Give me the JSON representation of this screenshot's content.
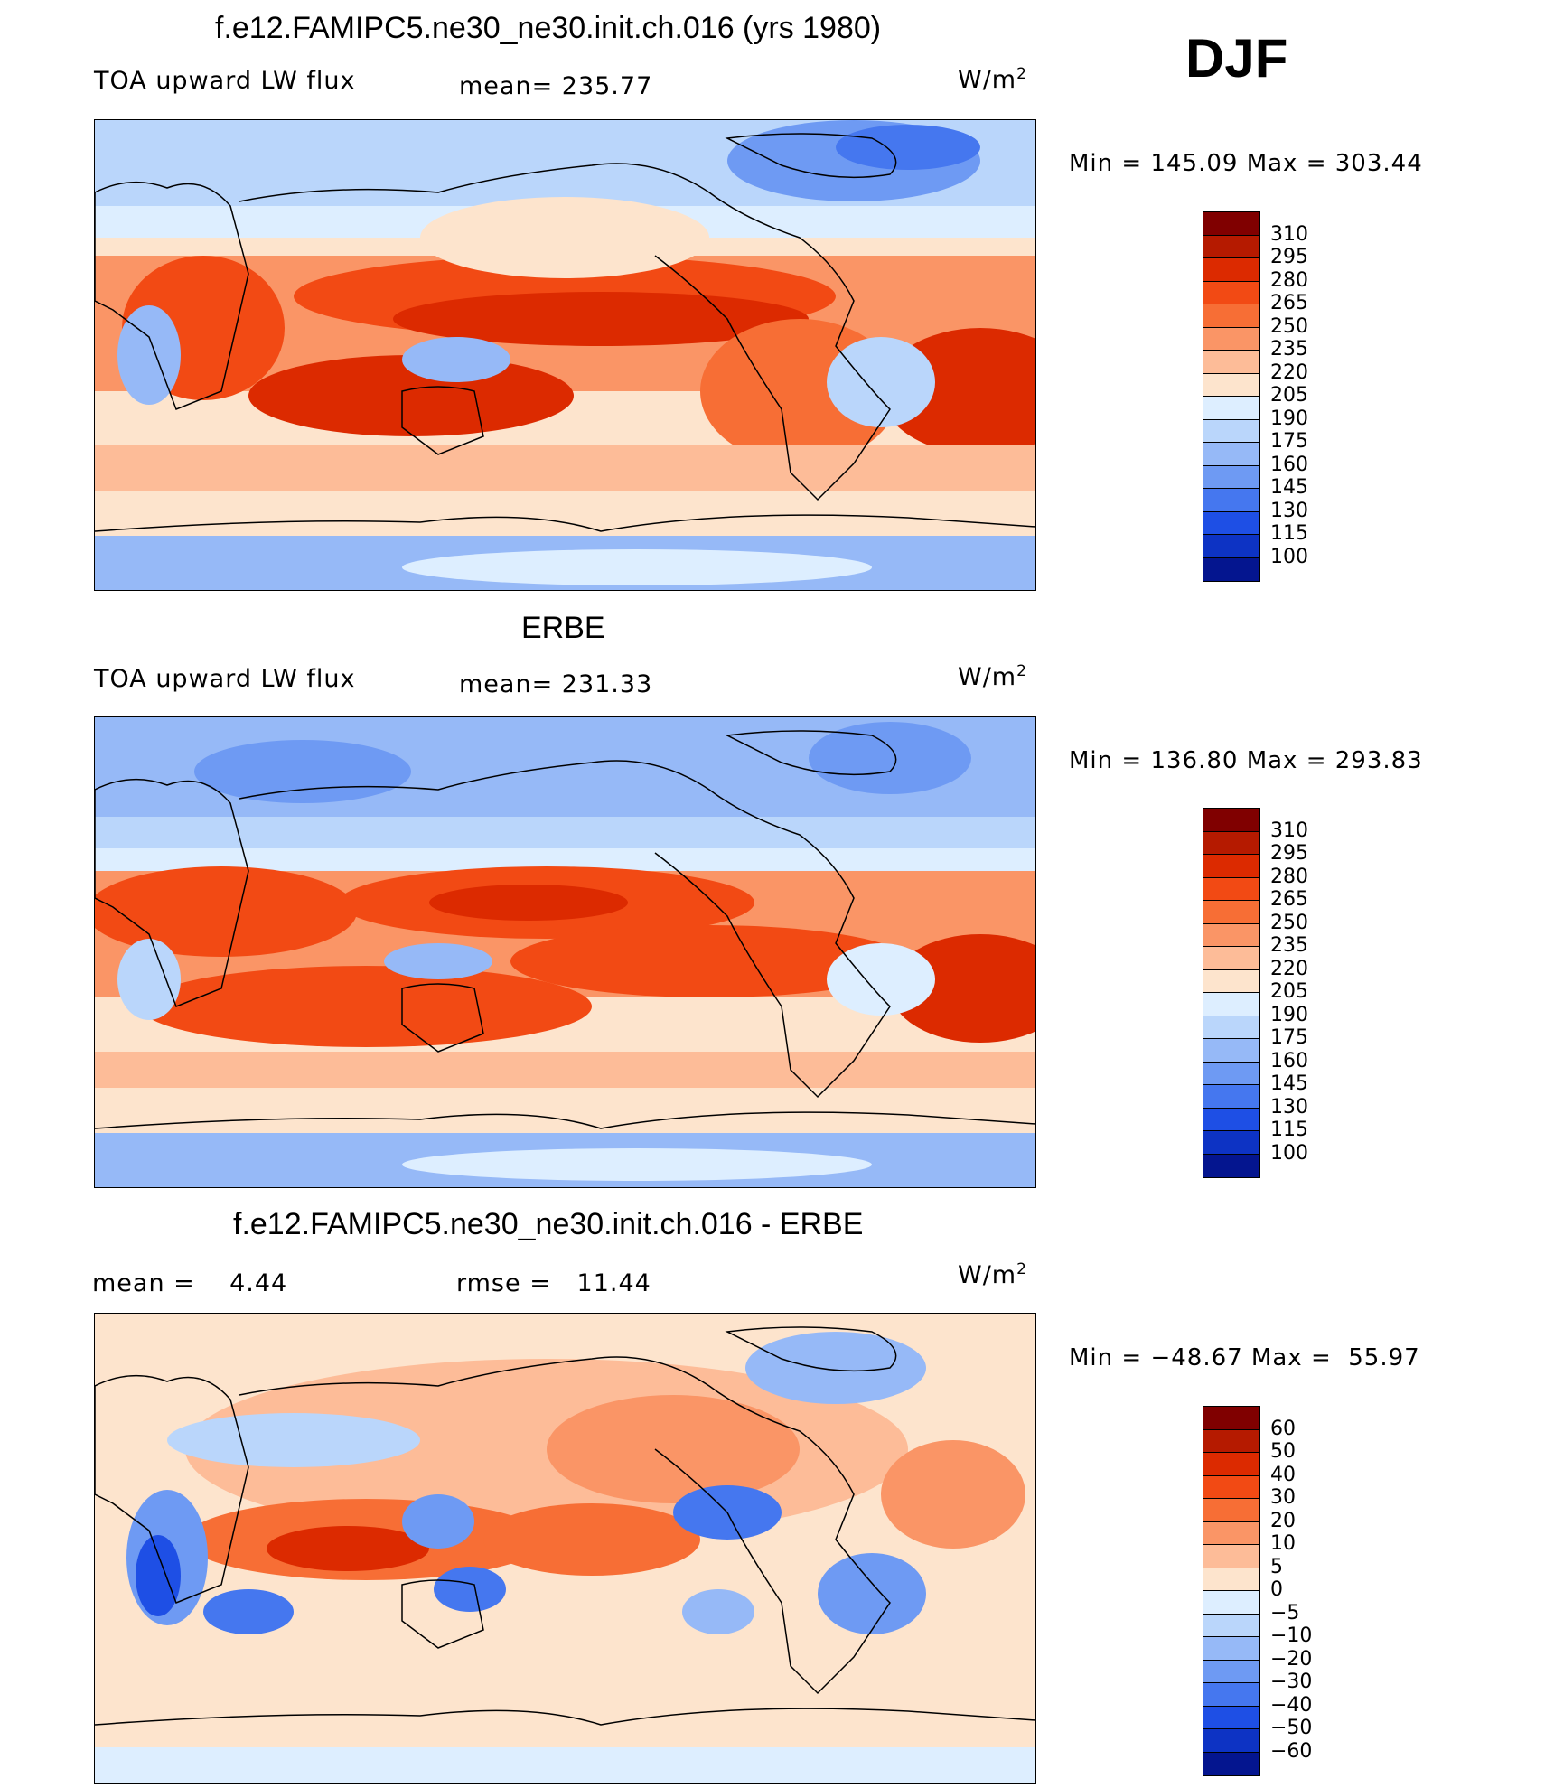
{
  "season": "DJF",
  "units": "W/m",
  "units_sup": "2",
  "panels": [
    {
      "title": "f.e12.FAMIPC5.ne30_ne30.init.ch.016 (yrs 1980)",
      "variable": "TOA upward LW flux",
      "mean_text": "mean= 235.77",
      "minmax_text": "Min = 145.09 Max = 303.44",
      "colorbar": {
        "colors": [
          "#800000",
          "#b51a00",
          "#dc2a00",
          "#f24a14",
          "#f76e35",
          "#fa9566",
          "#fdbc98",
          "#fde4cd",
          "#ddeeff",
          "#bad6fb",
          "#96b9f7",
          "#6e9af3",
          "#4577ef",
          "#1e4fe5",
          "#0d33c4",
          "#04158f"
        ],
        "ticks": [
          "310",
          "295",
          "280",
          "265",
          "250",
          "235",
          "220",
          "205",
          "190",
          "175",
          "160",
          "145",
          "130",
          "115",
          "100"
        ]
      }
    },
    {
      "title": "ERBE",
      "variable": "TOA upward LW flux",
      "mean_text": "mean= 231.33",
      "minmax_text": "Min = 136.80 Max = 293.83",
      "colorbar": {
        "colors": [
          "#800000",
          "#b51a00",
          "#dc2a00",
          "#f24a14",
          "#f76e35",
          "#fa9566",
          "#fdbc98",
          "#fde4cd",
          "#ddeeff",
          "#bad6fb",
          "#96b9f7",
          "#6e9af3",
          "#4577ef",
          "#1e4fe5",
          "#0d33c4",
          "#04158f"
        ],
        "ticks": [
          "310",
          "295",
          "280",
          "265",
          "250",
          "235",
          "220",
          "205",
          "190",
          "175",
          "160",
          "145",
          "130",
          "115",
          "100"
        ]
      }
    },
    {
      "title": "f.e12.FAMIPC5.ne30_ne30.init.ch.016 - ERBE",
      "mean_text": "mean =    4.44",
      "rmse_text": "rmse =   11.44",
      "minmax_text": "Min = −48.67 Max =  55.97",
      "colorbar": {
        "colors": [
          "#800000",
          "#b51a00",
          "#dc2a00",
          "#f24a14",
          "#f76e35",
          "#fa9566",
          "#fdbc98",
          "#fde4cd",
          "#ddeeff",
          "#bad6fb",
          "#96b9f7",
          "#6e9af3",
          "#4577ef",
          "#1e4fe5",
          "#0d33c4",
          "#04158f"
        ],
        "ticks": [
          "60",
          "50",
          "40",
          "30",
          "20",
          "10",
          "5",
          "0",
          "−5",
          "−10",
          "−20",
          "−30",
          "−40",
          "−50",
          "−60"
        ]
      }
    }
  ]
}
